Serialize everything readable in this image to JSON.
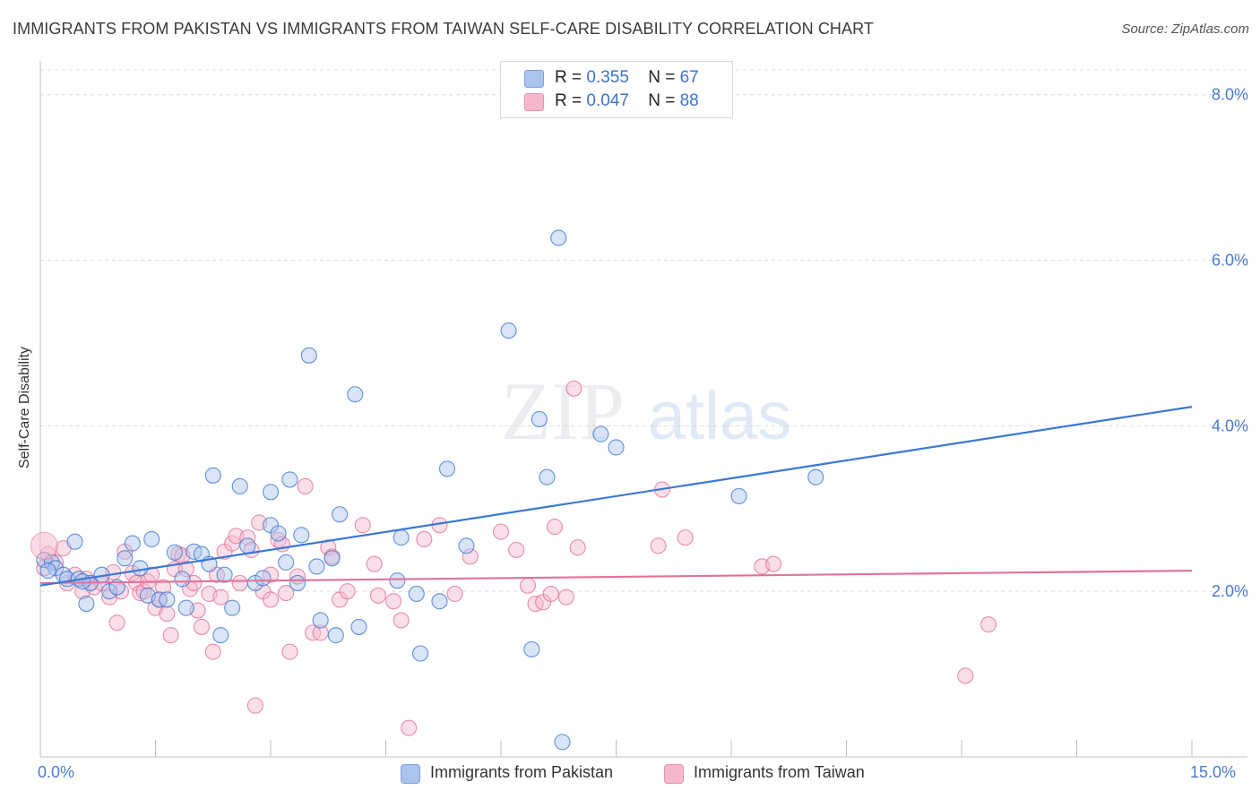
{
  "title": "IMMIGRANTS FROM PAKISTAN VS IMMIGRANTS FROM TAIWAN SELF-CARE DISABILITY CORRELATION CHART",
  "source": "Source: ZipAtlas.com",
  "watermark": {
    "zip": "ZIP",
    "atlas": "atlas"
  },
  "legend": {
    "r_label": "R =",
    "n_label": "N =",
    "pakistan": {
      "r": "0.355",
      "n": "67"
    },
    "taiwan": {
      "r": "0.047",
      "n": "88"
    }
  },
  "bottom_legend": {
    "pakistan": "Immigrants from Pakistan",
    "taiwan": "Immigrants from Taiwan"
  },
  "chart_data": {
    "type": "scatter",
    "title": "IMMIGRANTS FROM PAKISTAN VS IMMIGRANTS FROM TAIWAN SELF-CARE DISABILITY CORRELATION CHART",
    "xlabel": "",
    "ylabel": "Self-Care Disability",
    "xlim": [
      0,
      15
    ],
    "ylim": [
      0,
      8.3
    ],
    "x_tick_labels": [
      "0.0%",
      "15.0%"
    ],
    "y_ticks": [
      2,
      4,
      6,
      8
    ],
    "y_tick_labels": [
      "2.0%",
      "4.0%",
      "6.0%",
      "8.0%"
    ],
    "colors": {
      "pakistan": "#3b78d4",
      "taiwan": "#e3729b",
      "pakistan_fill": "#aac4ee",
      "taiwan_fill": "#f5b7cb"
    },
    "series": [
      {
        "name": "Immigrants from Pakistan",
        "trend": {
          "x": [
            0,
            15
          ],
          "y": [
            2.07,
            4.23
          ]
        },
        "points": [
          [
            0.05,
            2.38
          ],
          [
            0.15,
            2.35
          ],
          [
            0.2,
            2.28
          ],
          [
            0.3,
            2.2
          ],
          [
            0.35,
            2.15
          ],
          [
            0.45,
            2.6
          ],
          [
            0.5,
            2.15
          ],
          [
            0.6,
            1.85
          ],
          [
            0.65,
            2.1
          ],
          [
            0.8,
            2.2
          ],
          [
            0.9,
            2.0
          ],
          [
            1.0,
            2.05
          ],
          [
            1.1,
            2.4
          ],
          [
            1.2,
            2.58
          ],
          [
            1.3,
            2.28
          ],
          [
            1.4,
            1.95
          ],
          [
            1.45,
            2.63
          ],
          [
            1.55,
            1.9
          ],
          [
            1.65,
            1.9
          ],
          [
            1.75,
            2.47
          ],
          [
            1.85,
            2.15
          ],
          [
            1.9,
            1.8
          ],
          [
            2.0,
            2.48
          ],
          [
            2.1,
            2.45
          ],
          [
            2.2,
            2.33
          ],
          [
            2.25,
            3.4
          ],
          [
            2.35,
            1.47
          ],
          [
            2.4,
            2.2
          ],
          [
            2.5,
            1.8
          ],
          [
            2.6,
            3.27
          ],
          [
            2.7,
            2.55
          ],
          [
            2.8,
            2.1
          ],
          [
            2.9,
            2.16
          ],
          [
            3.0,
            2.8
          ],
          [
            3.0,
            3.2
          ],
          [
            3.1,
            2.7
          ],
          [
            3.2,
            2.35
          ],
          [
            3.25,
            3.35
          ],
          [
            3.35,
            2.1
          ],
          [
            3.4,
            2.68
          ],
          [
            3.5,
            4.85
          ],
          [
            3.6,
            2.3
          ],
          [
            3.65,
            1.65
          ],
          [
            3.8,
            2.4
          ],
          [
            3.85,
            1.47
          ],
          [
            3.9,
            2.93
          ],
          [
            4.1,
            4.38
          ],
          [
            4.15,
            1.57
          ],
          [
            4.65,
            2.13
          ],
          [
            4.7,
            2.65
          ],
          [
            4.9,
            1.97
          ],
          [
            4.95,
            1.25
          ],
          [
            5.2,
            1.88
          ],
          [
            5.3,
            3.48
          ],
          [
            5.55,
            2.55
          ],
          [
            6.1,
            5.15
          ],
          [
            6.4,
            1.3
          ],
          [
            6.5,
            4.08
          ],
          [
            6.6,
            3.38
          ],
          [
            6.75,
            6.27
          ],
          [
            6.8,
            0.18
          ],
          [
            7.3,
            3.9
          ],
          [
            7.5,
            3.74
          ],
          [
            9.1,
            3.15
          ],
          [
            10.1,
            3.38
          ],
          [
            0.1,
            2.25
          ],
          [
            0.55,
            2.12
          ]
        ]
      },
      {
        "name": "Immigrants from Taiwan",
        "trend": {
          "x": [
            0,
            15
          ],
          "y": [
            2.1,
            2.25
          ]
        },
        "points": [
          [
            0.05,
            2.28
          ],
          [
            0.1,
            2.45
          ],
          [
            0.2,
            2.35
          ],
          [
            0.3,
            2.52
          ],
          [
            0.35,
            2.1
          ],
          [
            0.45,
            2.2
          ],
          [
            0.55,
            2.0
          ],
          [
            0.6,
            2.15
          ],
          [
            0.7,
            2.05
          ],
          [
            0.8,
            2.1
          ],
          [
            0.9,
            1.93
          ],
          [
            0.95,
            2.23
          ],
          [
            1.0,
            1.62
          ],
          [
            1.05,
            2.0
          ],
          [
            1.1,
            2.48
          ],
          [
            1.2,
            2.22
          ],
          [
            1.25,
            2.1
          ],
          [
            1.3,
            1.98
          ],
          [
            1.35,
            2.0
          ],
          [
            1.4,
            2.12
          ],
          [
            1.45,
            2.2
          ],
          [
            1.5,
            1.8
          ],
          [
            1.55,
            1.9
          ],
          [
            1.6,
            2.05
          ],
          [
            1.65,
            1.73
          ],
          [
            1.7,
            1.47
          ],
          [
            1.75,
            2.27
          ],
          [
            1.8,
            2.45
          ],
          [
            1.85,
            2.43
          ],
          [
            1.9,
            2.27
          ],
          [
            1.95,
            2.03
          ],
          [
            2.0,
            2.1
          ],
          [
            2.05,
            1.77
          ],
          [
            2.1,
            1.57
          ],
          [
            2.2,
            1.97
          ],
          [
            2.25,
            1.27
          ],
          [
            2.3,
            2.2
          ],
          [
            2.35,
            1.93
          ],
          [
            2.4,
            2.48
          ],
          [
            2.5,
            2.58
          ],
          [
            2.55,
            2.67
          ],
          [
            2.6,
            2.1
          ],
          [
            2.7,
            2.65
          ],
          [
            2.75,
            2.5
          ],
          [
            2.8,
            0.62
          ],
          [
            2.85,
            2.83
          ],
          [
            2.9,
            2.0
          ],
          [
            3.0,
            2.2
          ],
          [
            3.0,
            1.9
          ],
          [
            3.1,
            2.62
          ],
          [
            3.15,
            2.57
          ],
          [
            3.2,
            1.98
          ],
          [
            3.25,
            1.27
          ],
          [
            3.35,
            2.18
          ],
          [
            3.45,
            3.27
          ],
          [
            3.55,
            1.5
          ],
          [
            3.65,
            1.5
          ],
          [
            3.75,
            2.53
          ],
          [
            3.8,
            2.42
          ],
          [
            3.9,
            1.9
          ],
          [
            4.0,
            2.0
          ],
          [
            4.2,
            2.8
          ],
          [
            4.35,
            2.33
          ],
          [
            4.4,
            1.95
          ],
          [
            4.6,
            1.88
          ],
          [
            4.7,
            1.65
          ],
          [
            4.8,
            0.35
          ],
          [
            5.0,
            2.63
          ],
          [
            5.2,
            2.8
          ],
          [
            5.4,
            1.97
          ],
          [
            5.6,
            2.42
          ],
          [
            6.0,
            2.72
          ],
          [
            6.2,
            2.5
          ],
          [
            6.35,
            2.07
          ],
          [
            6.45,
            1.85
          ],
          [
            6.55,
            1.87
          ],
          [
            6.65,
            1.97
          ],
          [
            6.7,
            2.78
          ],
          [
            6.85,
            1.93
          ],
          [
            7.0,
            2.53
          ],
          [
            6.95,
            4.45
          ],
          [
            8.1,
            3.23
          ],
          [
            8.05,
            2.55
          ],
          [
            8.4,
            2.65
          ],
          [
            9.4,
            2.3
          ],
          [
            9.55,
            2.33
          ],
          [
            12.05,
            0.98
          ],
          [
            12.35,
            1.6
          ]
        ]
      }
    ]
  }
}
